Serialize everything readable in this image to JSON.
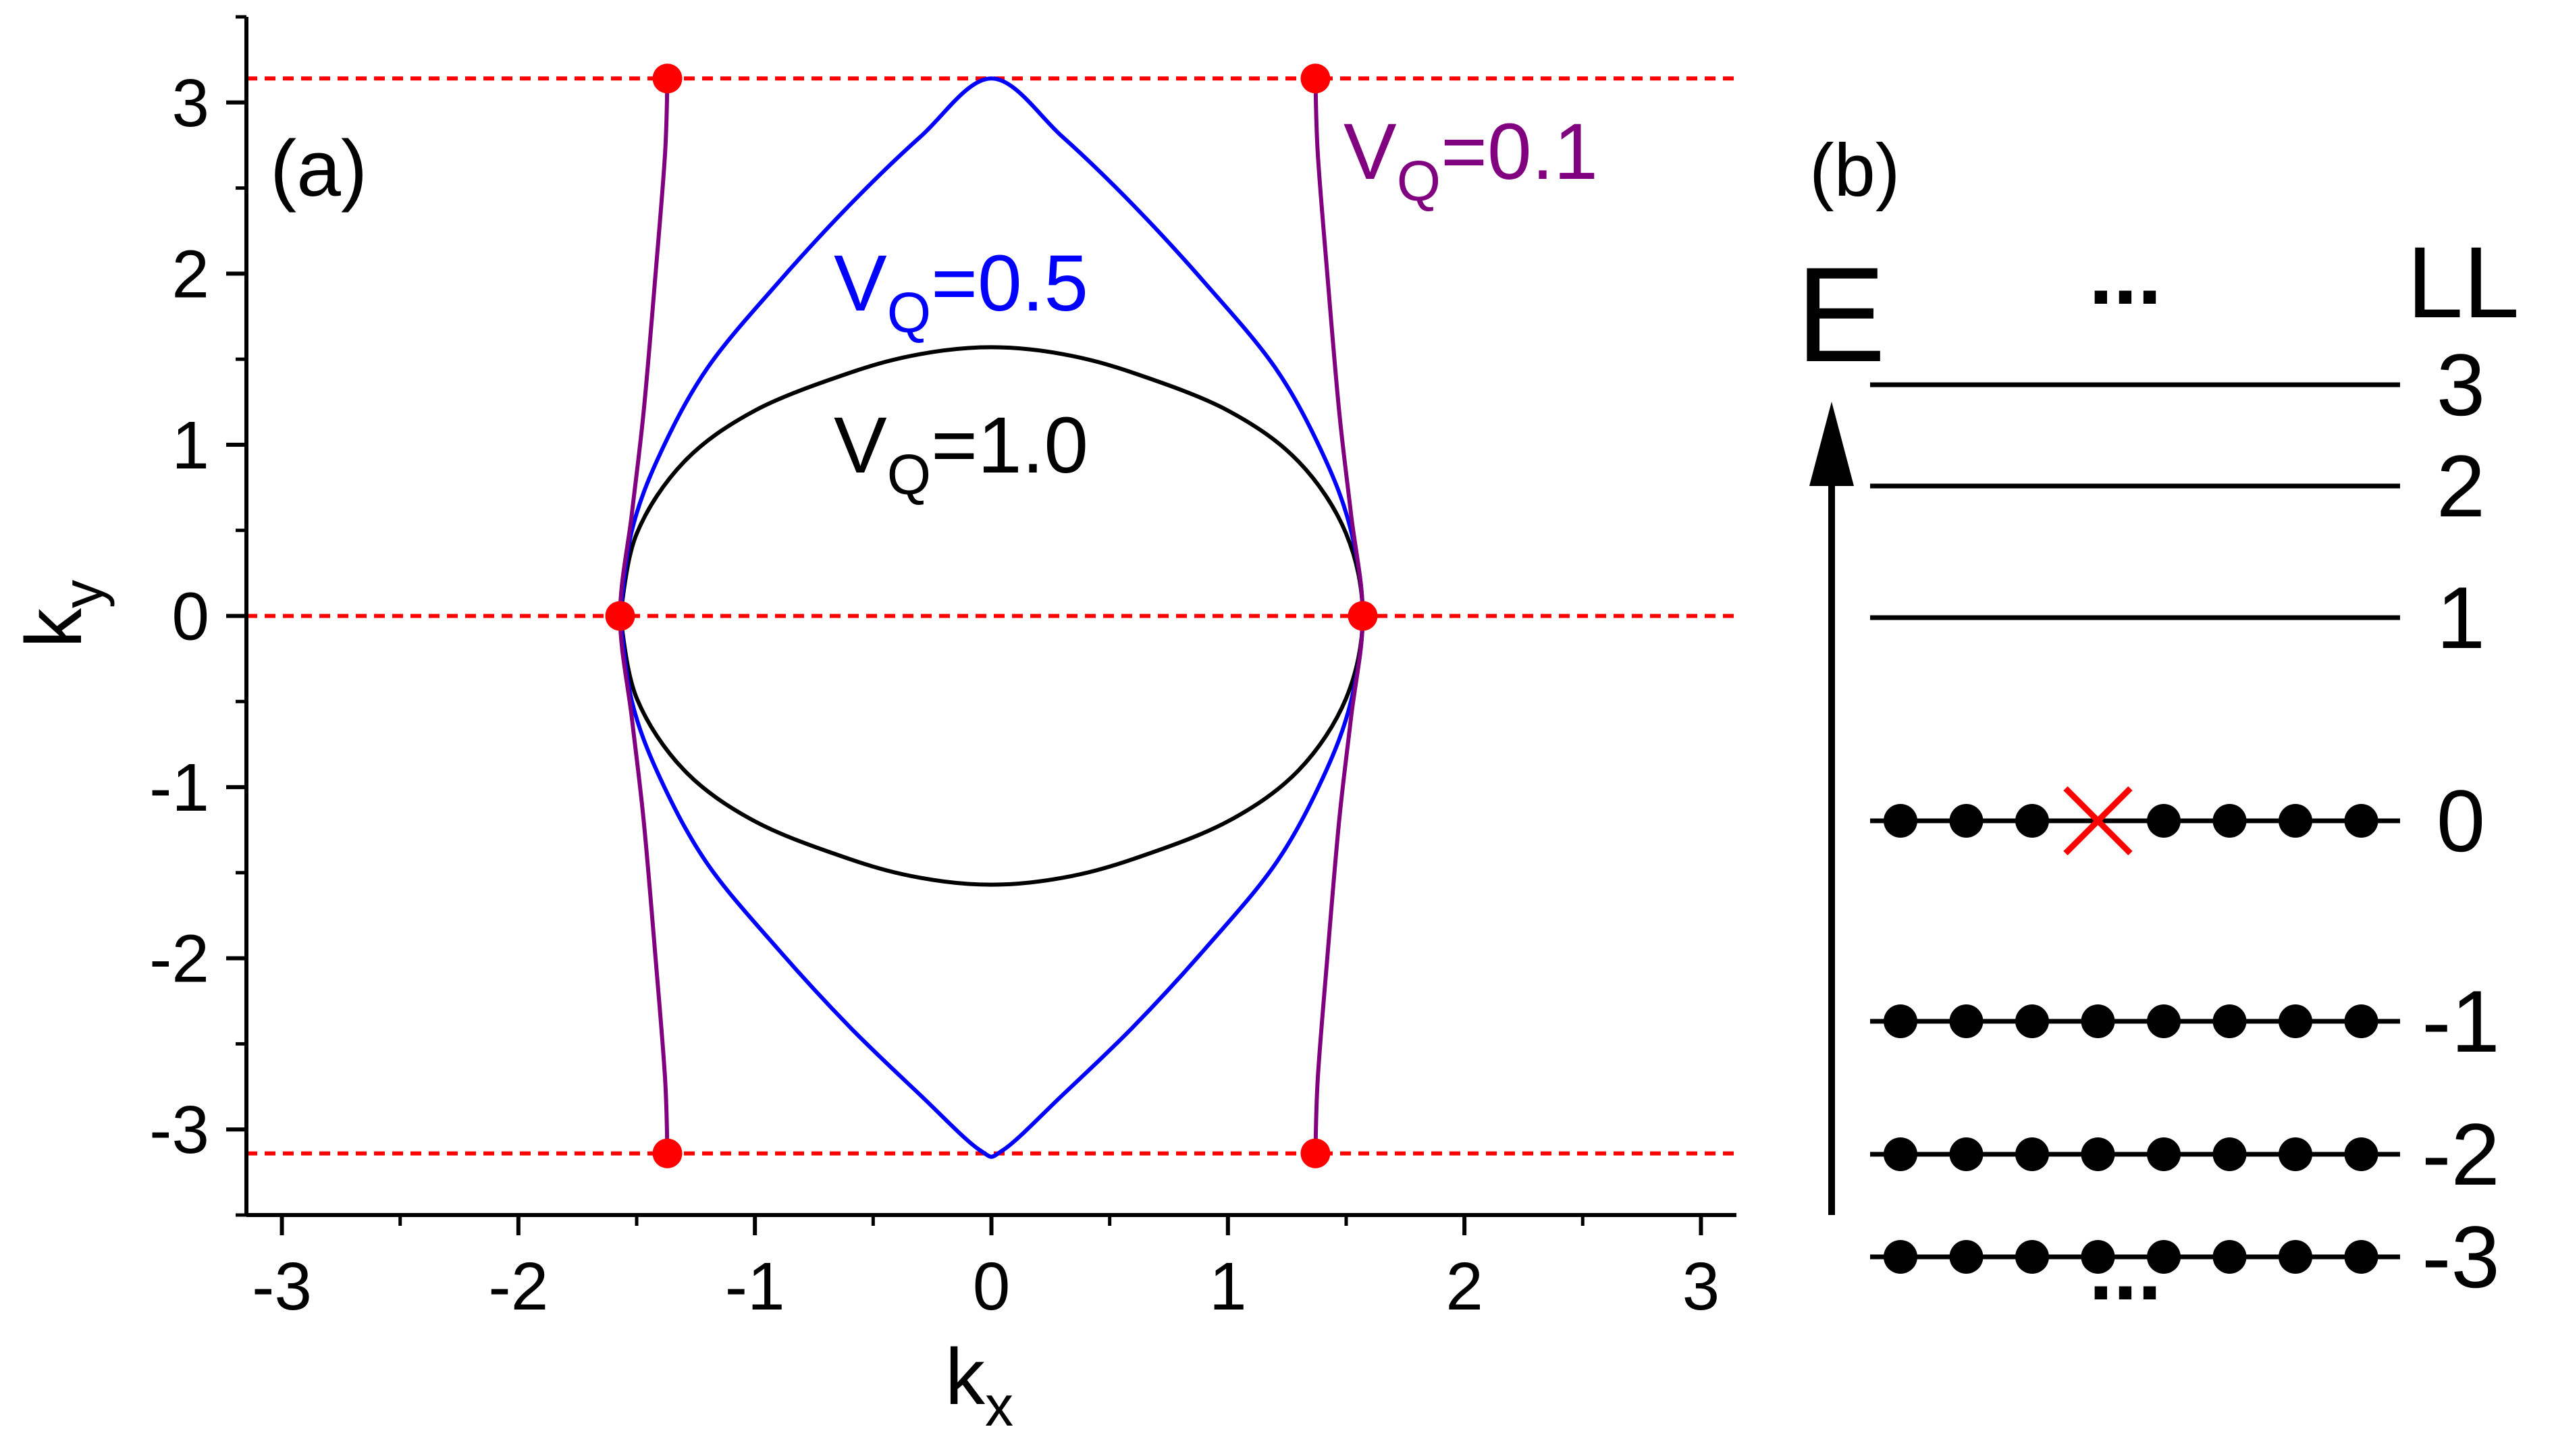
{
  "panel_a": {
    "label": "(a)",
    "xlabel": "k",
    "xlabel_sub": "x",
    "ylabel": "k",
    "ylabel_sub": "y",
    "curve_labels": [
      {
        "main": "V",
        "sub": "Q",
        "value": "=0.5",
        "color": "#0000ff"
      },
      {
        "main": "V",
        "sub": "Q",
        "value": "=1.0",
        "color": "#000000"
      },
      {
        "main": "V",
        "sub": "Q",
        "value": "=0.1",
        "color": "#800080"
      }
    ]
  },
  "panel_b": {
    "label": "(b)",
    "axis_label": "E",
    "column_label": "LL",
    "ellipsis_top": "...",
    "ellipsis_bottom": "...",
    "level_labels": [
      "3",
      "2",
      "1",
      "0",
      "-1",
      "-2",
      "-3"
    ],
    "removed_marker_color": "#ff0000"
  },
  "chart_data": [
    {
      "type": "line",
      "panel": "(a)",
      "xlim": [
        -3.15,
        3.15
      ],
      "ylim": [
        -3.5,
        3.5
      ],
      "x_ticks": [
        -3,
        -2,
        -1,
        0,
        1,
        2,
        3
      ],
      "y_ticks": [
        -3,
        -2,
        -1,
        0,
        1,
        2,
        3
      ],
      "x_tick_labels": [
        "-3",
        "-2",
        "-1",
        "0",
        "1",
        "2",
        "3"
      ],
      "y_tick_labels": [
        "-3",
        "-2",
        "-1",
        "0",
        "1",
        "2",
        "3"
      ],
      "grid": false,
      "series": [
        {
          "name": "VQ=1.0",
          "color": "#000000",
          "points": [
            [
              -1.57,
              0
            ],
            [
              -1.5,
              0.48
            ],
            [
              -1.3,
              0.9
            ],
            [
              -1.0,
              1.2
            ],
            [
              -0.6,
              1.42
            ],
            [
              -0.3,
              1.53
            ],
            [
              0,
              1.57
            ],
            [
              0.3,
              1.53
            ],
            [
              0.6,
              1.42
            ],
            [
              1.0,
              1.2
            ],
            [
              1.3,
              0.9
            ],
            [
              1.5,
              0.48
            ],
            [
              1.57,
              0
            ],
            [
              1.5,
              -0.48
            ],
            [
              1.3,
              -0.9
            ],
            [
              1.0,
              -1.2
            ],
            [
              0.6,
              -1.42
            ],
            [
              0.3,
              -1.53
            ],
            [
              0,
              -1.57
            ],
            [
              -0.3,
              -1.53
            ],
            [
              -0.6,
              -1.42
            ],
            [
              -1.0,
              -1.2
            ],
            [
              -1.3,
              -0.9
            ],
            [
              -1.5,
              -0.48
            ],
            [
              -1.57,
              0
            ]
          ]
        },
        {
          "name": "VQ=0.5",
          "color": "#0000ff",
          "points": [
            [
              -1.57,
              0
            ],
            [
              -1.52,
              0.5
            ],
            [
              -1.4,
              0.95
            ],
            [
              -1.2,
              1.45
            ],
            [
              -0.9,
              1.95
            ],
            [
              -0.6,
              2.4
            ],
            [
              -0.3,
              2.8
            ],
            [
              0,
              3.14
            ],
            [
              0.3,
              2.8
            ],
            [
              0.6,
              2.4
            ],
            [
              0.9,
              1.95
            ],
            [
              1.2,
              1.45
            ],
            [
              1.4,
              0.95
            ],
            [
              1.52,
              0.5
            ],
            [
              1.57,
              0
            ],
            [
              1.52,
              -0.5
            ],
            [
              1.4,
              -0.95
            ],
            [
              1.2,
              -1.45
            ],
            [
              0.9,
              -1.95
            ],
            [
              0.6,
              -2.4
            ],
            [
              0.3,
              -2.8
            ],
            [
              0.05,
              -3.12
            ],
            [
              -0.05,
              -3.12
            ],
            [
              -0.3,
              -2.8
            ],
            [
              -0.6,
              -2.4
            ],
            [
              -0.9,
              -1.95
            ],
            [
              -1.2,
              -1.45
            ],
            [
              -1.4,
              -0.95
            ],
            [
              -1.52,
              -0.5
            ],
            [
              -1.57,
              0
            ]
          ]
        },
        {
          "name": "VQ=0.1 (left)",
          "color": "#800080",
          "points": [
            [
              -1.37,
              3.14
            ],
            [
              -1.38,
              2.7
            ],
            [
              -1.42,
              2.0
            ],
            [
              -1.47,
              1.2
            ],
            [
              -1.52,
              0.6
            ],
            [
              -1.57,
              0
            ],
            [
              -1.52,
              -0.6
            ],
            [
              -1.47,
              -1.2
            ],
            [
              -1.42,
              -2.0
            ],
            [
              -1.38,
              -2.7
            ],
            [
              -1.37,
              -3.14
            ]
          ]
        },
        {
          "name": "VQ=0.1 (right)",
          "color": "#800080",
          "points": [
            [
              1.37,
              3.14
            ],
            [
              1.38,
              2.7
            ],
            [
              1.42,
              2.0
            ],
            [
              1.47,
              1.2
            ],
            [
              1.52,
              0.6
            ],
            [
              1.57,
              0
            ],
            [
              1.52,
              -0.6
            ],
            [
              1.47,
              -1.2
            ],
            [
              1.42,
              -2.0
            ],
            [
              1.38,
              -2.7
            ],
            [
              1.37,
              -3.14
            ]
          ]
        }
      ],
      "reference_lines": [
        {
          "y": 3.14,
          "color": "#ff0000",
          "style": "dashed"
        },
        {
          "y": 0,
          "color": "#ff0000",
          "style": "dashed"
        },
        {
          "y": -3.14,
          "color": "#ff0000",
          "style": "dashed"
        }
      ],
      "marked_points": [
        {
          "x": -1.37,
          "y": 3.14
        },
        {
          "x": 1.37,
          "y": 3.14
        },
        {
          "x": -1.57,
          "y": 0
        },
        {
          "x": 1.57,
          "y": 0
        },
        {
          "x": -1.37,
          "y": -3.14
        },
        {
          "x": 1.37,
          "y": -3.14
        }
      ],
      "marker_color": "#ff0000"
    },
    {
      "type": "diagram",
      "panel": "(b)",
      "levels": [
        {
          "label": "3",
          "filled_dots": 0
        },
        {
          "label": "2",
          "filled_dots": 0
        },
        {
          "label": "1",
          "filled_dots": 0
        },
        {
          "label": "0",
          "filled_dots": 8,
          "removed_index": 3
        },
        {
          "label": "-1",
          "filled_dots": 8
        },
        {
          "label": "-2",
          "filled_dots": 8
        },
        {
          "label": "-3",
          "filled_dots": 8
        }
      ]
    }
  ]
}
